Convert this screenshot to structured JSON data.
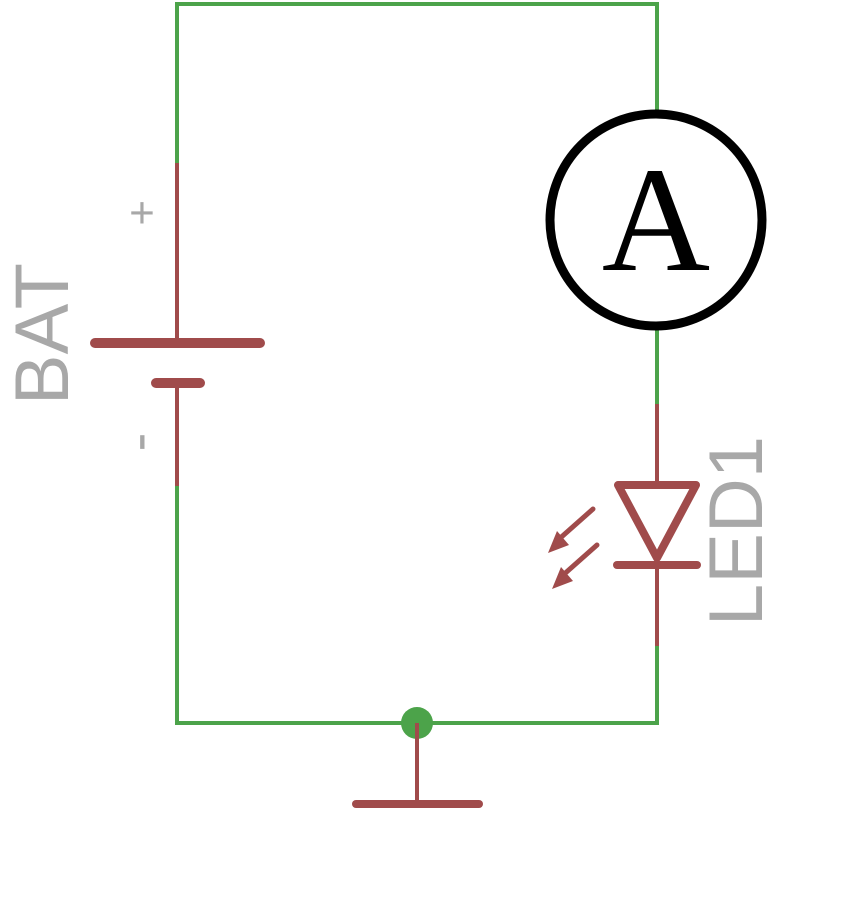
{
  "labels": {
    "battery_name": "BAT",
    "battery_plus": "+",
    "battery_minus": "-",
    "ammeter_symbol": "A",
    "led_name": "LED1"
  },
  "colors": {
    "wire": "#4ca34a",
    "component": "#a04b4b",
    "label": "#a8a8a8",
    "ammeter": "#000000",
    "background": "#ffffff"
  }
}
